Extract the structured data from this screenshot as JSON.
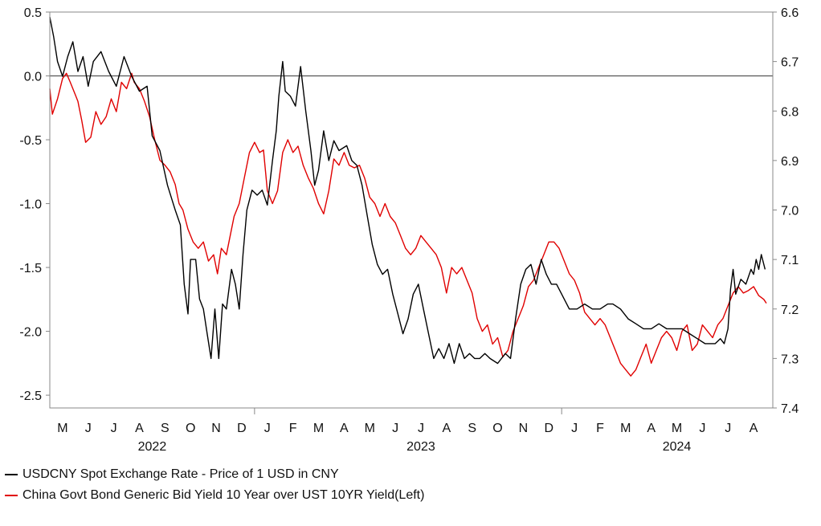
{
  "chart_data": {
    "type": "line",
    "title": "",
    "left_axis": {
      "label": "",
      "ylim": [
        -2.6,
        0.5
      ],
      "ticks": [
        "0.5",
        "0.0",
        "-0.5",
        "-1.0",
        "-1.5",
        "-2.0",
        "-2.5"
      ],
      "tick_values": [
        0.5,
        0.0,
        -0.5,
        -1.0,
        -1.5,
        -2.0,
        -2.5
      ]
    },
    "right_axis": {
      "label": "",
      "ylim": [
        6.6,
        7.4
      ],
      "inverted": true,
      "ticks": [
        "6.6",
        "6.7",
        "6.8",
        "6.9",
        "7.0",
        "7.1",
        "7.2",
        "7.3",
        "7.4"
      ],
      "tick_values": [
        6.6,
        6.7,
        6.8,
        6.9,
        7.0,
        7.1,
        7.2,
        7.3,
        7.4
      ]
    },
    "x_axis": {
      "range_months": [
        4.0,
        32.25
      ],
      "month_labels": [
        "M",
        "J",
        "J",
        "A",
        "S",
        "O",
        "N",
        "D",
        "J",
        "F",
        "M",
        "A",
        "M",
        "J",
        "J",
        "A",
        "S",
        "O",
        "N",
        "D",
        "J",
        "F",
        "M",
        "A",
        "M",
        "J",
        "J",
        "A"
      ],
      "month_positions": [
        4.5,
        5.5,
        6.5,
        7.5,
        8.5,
        9.5,
        10.5,
        11.5,
        12.5,
        13.5,
        14.5,
        15.5,
        16.5,
        17.5,
        18.5,
        19.5,
        20.5,
        21.5,
        22.5,
        23.5,
        24.5,
        25.5,
        26.5,
        27.5,
        28.5,
        29.5,
        30.5,
        31.5
      ],
      "year_labels": [
        "2022",
        "2023",
        "2024"
      ],
      "year_positions": [
        8.0,
        18.5,
        28.5
      ],
      "year_boundaries": [
        12.0,
        24.0
      ]
    },
    "reference_line": {
      "axis": "left",
      "value": 0.0
    },
    "series": [
      {
        "name": "USDCNY Spot Exchange Rate - Price of 1 USD in CNY",
        "axis": "right",
        "color": "#000000",
        "points": [
          [
            4.0,
            6.61
          ],
          [
            4.15,
            6.65
          ],
          [
            4.3,
            6.7
          ],
          [
            4.5,
            6.73
          ],
          [
            4.7,
            6.69
          ],
          [
            4.9,
            6.66
          ],
          [
            5.1,
            6.72
          ],
          [
            5.3,
            6.69
          ],
          [
            5.5,
            6.75
          ],
          [
            5.7,
            6.7
          ],
          [
            6.0,
            6.68
          ],
          [
            6.3,
            6.72
          ],
          [
            6.6,
            6.75
          ],
          [
            6.9,
            6.69
          ],
          [
            7.2,
            6.73
          ],
          [
            7.5,
            6.76
          ],
          [
            7.8,
            6.75
          ],
          [
            8.0,
            6.85
          ],
          [
            8.3,
            6.88
          ],
          [
            8.6,
            6.95
          ],
          [
            8.9,
            7.0
          ],
          [
            9.1,
            7.03
          ],
          [
            9.25,
            7.15
          ],
          [
            9.4,
            7.21
          ],
          [
            9.5,
            7.1
          ],
          [
            9.7,
            7.1
          ],
          [
            9.85,
            7.18
          ],
          [
            10.0,
            7.2
          ],
          [
            10.15,
            7.25
          ],
          [
            10.3,
            7.3
          ],
          [
            10.45,
            7.2
          ],
          [
            10.6,
            7.3
          ],
          [
            10.75,
            7.19
          ],
          [
            10.9,
            7.2
          ],
          [
            11.1,
            7.12
          ],
          [
            11.25,
            7.15
          ],
          [
            11.4,
            7.2
          ],
          [
            11.55,
            7.09
          ],
          [
            11.7,
            7.0
          ],
          [
            11.9,
            6.96
          ],
          [
            12.1,
            6.97
          ],
          [
            12.3,
            6.96
          ],
          [
            12.5,
            6.99
          ],
          [
            12.7,
            6.9
          ],
          [
            12.85,
            6.84
          ],
          [
            12.95,
            6.77
          ],
          [
            13.1,
            6.7
          ],
          [
            13.2,
            6.76
          ],
          [
            13.4,
            6.77
          ],
          [
            13.6,
            6.79
          ],
          [
            13.8,
            6.71
          ],
          [
            14.0,
            6.8
          ],
          [
            14.2,
            6.88
          ],
          [
            14.35,
            6.95
          ],
          [
            14.5,
            6.92
          ],
          [
            14.7,
            6.84
          ],
          [
            14.9,
            6.9
          ],
          [
            15.1,
            6.86
          ],
          [
            15.3,
            6.88
          ],
          [
            15.6,
            6.87
          ],
          [
            15.8,
            6.9
          ],
          [
            16.0,
            6.91
          ],
          [
            16.2,
            6.95
          ],
          [
            16.4,
            7.01
          ],
          [
            16.6,
            7.07
          ],
          [
            16.8,
            7.11
          ],
          [
            17.0,
            7.13
          ],
          [
            17.2,
            7.12
          ],
          [
            17.4,
            7.17
          ],
          [
            17.6,
            7.21
          ],
          [
            17.8,
            7.25
          ],
          [
            18.0,
            7.22
          ],
          [
            18.2,
            7.17
          ],
          [
            18.4,
            7.15
          ],
          [
            18.6,
            7.2
          ],
          [
            18.8,
            7.25
          ],
          [
            19.0,
            7.3
          ],
          [
            19.2,
            7.28
          ],
          [
            19.4,
            7.3
          ],
          [
            19.6,
            7.27
          ],
          [
            19.8,
            7.31
          ],
          [
            20.0,
            7.27
          ],
          [
            20.2,
            7.3
          ],
          [
            20.4,
            7.29
          ],
          [
            20.6,
            7.3
          ],
          [
            20.8,
            7.3
          ],
          [
            21.0,
            7.29
          ],
          [
            21.2,
            7.3
          ],
          [
            21.5,
            7.31
          ],
          [
            21.8,
            7.29
          ],
          [
            22.0,
            7.3
          ],
          [
            22.2,
            7.22
          ],
          [
            22.4,
            7.15
          ],
          [
            22.6,
            7.12
          ],
          [
            22.8,
            7.11
          ],
          [
            23.0,
            7.15
          ],
          [
            23.2,
            7.1
          ],
          [
            23.4,
            7.13
          ],
          [
            23.6,
            7.15
          ],
          [
            23.8,
            7.15
          ],
          [
            24.0,
            7.17
          ],
          [
            24.3,
            7.2
          ],
          [
            24.6,
            7.2
          ],
          [
            24.9,
            7.19
          ],
          [
            25.2,
            7.2
          ],
          [
            25.5,
            7.2
          ],
          [
            25.8,
            7.19
          ],
          [
            26.0,
            7.19
          ],
          [
            26.3,
            7.2
          ],
          [
            26.6,
            7.22
          ],
          [
            26.9,
            7.23
          ],
          [
            27.2,
            7.24
          ],
          [
            27.5,
            7.24
          ],
          [
            27.8,
            7.23
          ],
          [
            28.1,
            7.24
          ],
          [
            28.4,
            7.24
          ],
          [
            28.7,
            7.24
          ],
          [
            29.0,
            7.25
          ],
          [
            29.3,
            7.26
          ],
          [
            29.6,
            7.27
          ],
          [
            29.8,
            7.27
          ],
          [
            30.0,
            7.27
          ],
          [
            30.2,
            7.26
          ],
          [
            30.35,
            7.27
          ],
          [
            30.5,
            7.24
          ],
          [
            30.6,
            7.16
          ],
          [
            30.7,
            7.12
          ],
          [
            30.8,
            7.17
          ],
          [
            31.0,
            7.14
          ],
          [
            31.2,
            7.15
          ],
          [
            31.4,
            7.12
          ],
          [
            31.5,
            7.13
          ],
          [
            31.6,
            7.1
          ],
          [
            31.7,
            7.12
          ],
          [
            31.8,
            7.09
          ],
          [
            31.95,
            7.12
          ]
        ]
      },
      {
        "name": "China Govt Bond Generic Bid Yield 10 Year over UST 10YR Yield(Left)",
        "axis": "left",
        "color": "#e00000",
        "points": [
          [
            4.0,
            -0.1
          ],
          [
            4.1,
            -0.3
          ],
          [
            4.3,
            -0.18
          ],
          [
            4.5,
            -0.02
          ],
          [
            4.65,
            0.02
          ],
          [
            4.8,
            -0.05
          ],
          [
            5.0,
            -0.15
          ],
          [
            5.1,
            -0.2
          ],
          [
            5.25,
            -0.35
          ],
          [
            5.4,
            -0.52
          ],
          [
            5.6,
            -0.48
          ],
          [
            5.8,
            -0.28
          ],
          [
            6.0,
            -0.38
          ],
          [
            6.2,
            -0.32
          ],
          [
            6.4,
            -0.18
          ],
          [
            6.6,
            -0.28
          ],
          [
            6.8,
            -0.05
          ],
          [
            7.0,
            -0.1
          ],
          [
            7.2,
            0.02
          ],
          [
            7.3,
            -0.05
          ],
          [
            7.5,
            -0.1
          ],
          [
            7.7,
            -0.2
          ],
          [
            7.9,
            -0.32
          ],
          [
            8.1,
            -0.5
          ],
          [
            8.3,
            -0.66
          ],
          [
            8.5,
            -0.7
          ],
          [
            8.7,
            -0.75
          ],
          [
            8.9,
            -0.85
          ],
          [
            9.05,
            -1.0
          ],
          [
            9.2,
            -1.05
          ],
          [
            9.4,
            -1.2
          ],
          [
            9.6,
            -1.3
          ],
          [
            9.8,
            -1.35
          ],
          [
            10.0,
            -1.3
          ],
          [
            10.2,
            -1.45
          ],
          [
            10.4,
            -1.4
          ],
          [
            10.55,
            -1.55
          ],
          [
            10.7,
            -1.35
          ],
          [
            10.9,
            -1.4
          ],
          [
            11.05,
            -1.25
          ],
          [
            11.2,
            -1.1
          ],
          [
            11.4,
            -1.0
          ],
          [
            11.6,
            -0.8
          ],
          [
            11.8,
            -0.6
          ],
          [
            12.0,
            -0.52
          ],
          [
            12.2,
            -0.6
          ],
          [
            12.35,
            -0.58
          ],
          [
            12.5,
            -0.9
          ],
          [
            12.7,
            -1.0
          ],
          [
            12.9,
            -0.9
          ],
          [
            13.1,
            -0.6
          ],
          [
            13.3,
            -0.5
          ],
          [
            13.5,
            -0.6
          ],
          [
            13.7,
            -0.55
          ],
          [
            13.9,
            -0.7
          ],
          [
            14.1,
            -0.8
          ],
          [
            14.3,
            -0.88
          ],
          [
            14.5,
            -1.0
          ],
          [
            14.7,
            -1.08
          ],
          [
            14.9,
            -0.9
          ],
          [
            15.1,
            -0.65
          ],
          [
            15.3,
            -0.7
          ],
          [
            15.5,
            -0.6
          ],
          [
            15.7,
            -0.7
          ],
          [
            15.9,
            -0.72
          ],
          [
            16.1,
            -0.7
          ],
          [
            16.3,
            -0.8
          ],
          [
            16.5,
            -0.95
          ],
          [
            16.7,
            -1.0
          ],
          [
            16.9,
            -1.1
          ],
          [
            17.1,
            -1.0
          ],
          [
            17.3,
            -1.1
          ],
          [
            17.5,
            -1.15
          ],
          [
            17.7,
            -1.25
          ],
          [
            17.9,
            -1.35
          ],
          [
            18.1,
            -1.4
          ],
          [
            18.3,
            -1.35
          ],
          [
            18.5,
            -1.25
          ],
          [
            18.7,
            -1.3
          ],
          [
            18.9,
            -1.35
          ],
          [
            19.1,
            -1.4
          ],
          [
            19.3,
            -1.5
          ],
          [
            19.5,
            -1.7
          ],
          [
            19.7,
            -1.5
          ],
          [
            19.9,
            -1.55
          ],
          [
            20.1,
            -1.5
          ],
          [
            20.3,
            -1.6
          ],
          [
            20.5,
            -1.7
          ],
          [
            20.7,
            -1.9
          ],
          [
            20.9,
            -2.0
          ],
          [
            21.1,
            -1.95
          ],
          [
            21.3,
            -2.1
          ],
          [
            21.5,
            -2.05
          ],
          [
            21.7,
            -2.2
          ],
          [
            21.9,
            -2.15
          ],
          [
            22.1,
            -2.0
          ],
          [
            22.3,
            -1.9
          ],
          [
            22.5,
            -1.8
          ],
          [
            22.7,
            -1.65
          ],
          [
            22.9,
            -1.6
          ],
          [
            23.1,
            -1.5
          ],
          [
            23.3,
            -1.4
          ],
          [
            23.5,
            -1.3
          ],
          [
            23.7,
            -1.3
          ],
          [
            23.9,
            -1.35
          ],
          [
            24.1,
            -1.45
          ],
          [
            24.3,
            -1.55
          ],
          [
            24.5,
            -1.6
          ],
          [
            24.7,
            -1.7
          ],
          [
            24.9,
            -1.85
          ],
          [
            25.1,
            -1.9
          ],
          [
            25.3,
            -1.95
          ],
          [
            25.5,
            -1.9
          ],
          [
            25.7,
            -1.95
          ],
          [
            25.9,
            -2.05
          ],
          [
            26.1,
            -2.15
          ],
          [
            26.3,
            -2.25
          ],
          [
            26.5,
            -2.3
          ],
          [
            26.7,
            -2.35
          ],
          [
            26.9,
            -2.3
          ],
          [
            27.1,
            -2.2
          ],
          [
            27.3,
            -2.1
          ],
          [
            27.5,
            -2.25
          ],
          [
            27.7,
            -2.15
          ],
          [
            27.9,
            -2.05
          ],
          [
            28.1,
            -2.0
          ],
          [
            28.3,
            -2.05
          ],
          [
            28.5,
            -2.15
          ],
          [
            28.7,
            -2.0
          ],
          [
            28.9,
            -1.95
          ],
          [
            29.1,
            -2.15
          ],
          [
            29.3,
            -2.1
          ],
          [
            29.5,
            -1.95
          ],
          [
            29.7,
            -2.0
          ],
          [
            29.9,
            -2.05
          ],
          [
            30.1,
            -1.95
          ],
          [
            30.3,
            -1.9
          ],
          [
            30.5,
            -1.8
          ],
          [
            30.7,
            -1.7
          ],
          [
            30.9,
            -1.65
          ],
          [
            31.1,
            -1.7
          ],
          [
            31.3,
            -1.68
          ],
          [
            31.5,
            -1.65
          ],
          [
            31.7,
            -1.72
          ],
          [
            31.9,
            -1.75
          ],
          [
            32.0,
            -1.78
          ]
        ]
      }
    ]
  },
  "legend": {
    "items": [
      {
        "label": "USDCNY Spot Exchange Rate - Price of 1 USD in CNY",
        "color": "#000000"
      },
      {
        "label": "China Govt Bond Generic Bid Yield 10 Year over UST 10YR Yield(Left)",
        "color": "#e00000"
      }
    ]
  }
}
